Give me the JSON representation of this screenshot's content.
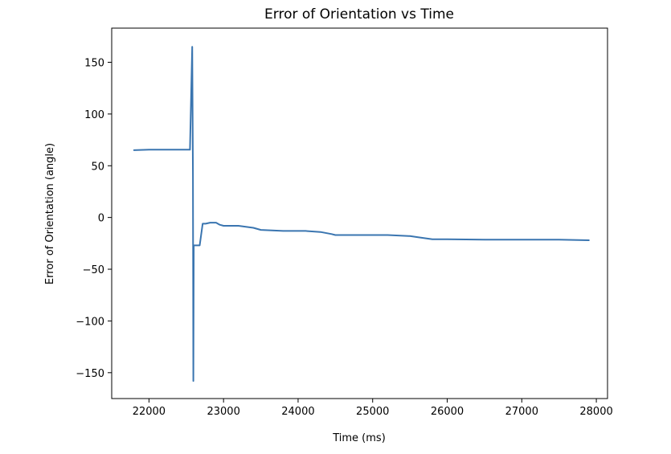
{
  "chart_data": {
    "type": "line",
    "title": "Error of Orientation vs Time",
    "xlabel": "Time (ms)",
    "ylabel": "Error of Orientation (angle)",
    "xlim": [
      21500,
      28150
    ],
    "ylim": [
      -175,
      183
    ],
    "xticks": [
      22000,
      23000,
      24000,
      25000,
      26000,
      27000,
      28000
    ],
    "xtick_labels": [
      "22000",
      "23000",
      "24000",
      "25000",
      "26000",
      "27000",
      "28000"
    ],
    "yticks": [
      150,
      100,
      50,
      0,
      -50,
      -100,
      -150
    ],
    "ytick_labels": [
      "150",
      "100",
      "50",
      "0",
      "−50",
      "−100",
      "−150"
    ],
    "grid": false,
    "colors": {
      "series": "#3a75b0"
    },
    "series": [
      {
        "x": [
          21800,
          22000,
          22300,
          22550,
          22580,
          22590,
          22595,
          22600,
          22620,
          22660,
          22680,
          22720,
          22760,
          22820,
          22900,
          22950,
          23000,
          23200,
          23400,
          23500,
          23800,
          24100,
          24300,
          24450,
          24500,
          25200,
          25500,
          25600,
          25800,
          26000,
          26500,
          27000,
          27500,
          27900
        ],
        "y": [
          65,
          65.5,
          65.5,
          65.5,
          165,
          40,
          -158,
          -27,
          -27,
          -27,
          -27,
          -6,
          -6,
          -5,
          -5,
          -7,
          -8,
          -8,
          -10,
          -12,
          -13,
          -13,
          -14,
          -16,
          -17,
          -17,
          -18,
          -19,
          -21,
          -21,
          -21.5,
          -21.5,
          -21.5,
          -22
        ]
      }
    ]
  }
}
